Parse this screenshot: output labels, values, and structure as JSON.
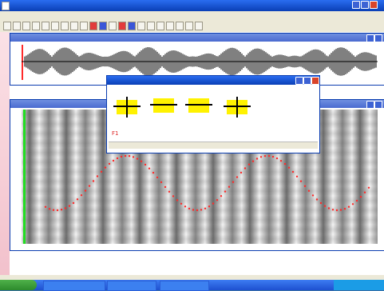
{
  "window_title": "",
  "icons": [
    "app-icon",
    "minimize-icon",
    "maximize-icon",
    "close-icon",
    "windows-logo-icon"
  ],
  "colors": {
    "title_blue": "#0a3fb6",
    "marker_red": "#ff2a2a",
    "swatch_yellow": "#fff200",
    "cursor_green": "#22dd22"
  },
  "dialog": {
    "title": "",
    "value_label": "F1"
  },
  "taskbar": {
    "start_label": ""
  }
}
